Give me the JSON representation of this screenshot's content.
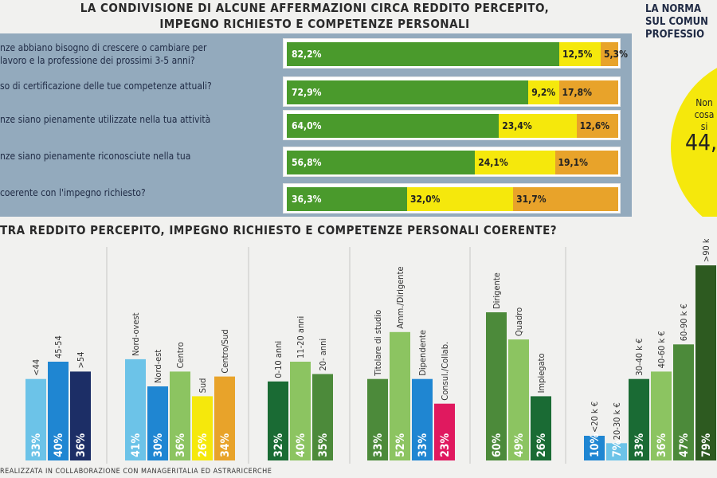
{
  "top": {
    "title_line1": "LA CONDIVISIONE DI ALCUNE AFFERMAZIONI CIRCA REDDITO PERCEPITO,",
    "title_line2": "IMPEGNO RICHIESTO E COMPETENZE PERSONALI",
    "statements": [
      {
        "text": "nze abbiano bisogno di crescere o cambiare per\n lavoro e la professione dei prossimi 3-5 anni?",
        "values": [
          82.2,
          12.5,
          5.3
        ],
        "labels": [
          "82,2%",
          "12,5%",
          "5,3%"
        ]
      },
      {
        "text": "so di certificazione delle tue competenze attuali?",
        "values": [
          72.9,
          9.2,
          17.8
        ],
        "labels": [
          "72,9%",
          "9,2%",
          "17,8%"
        ]
      },
      {
        "text": "nze siano pienamente utilizzate nella tua attività",
        "values": [
          64.0,
          23.4,
          12.6
        ],
        "labels": [
          "64,0%",
          "23,4%",
          "12,6%"
        ]
      },
      {
        "text": "nze siano pienamente riconosciute nella tua",
        "values": [
          56.8,
          24.1,
          19.1
        ],
        "labels": [
          "56,8%",
          "24,1%",
          "19,1%"
        ]
      },
      {
        "text": "coerente con l'impegno richiesto?",
        "values": [
          36.3,
          32.0,
          31.7
        ],
        "labels": [
          "36,3%",
          "32,0%",
          "31,7%"
        ]
      }
    ],
    "colors": [
      "#4a9a2c",
      "#f5e80c",
      "#e8a32a"
    ]
  },
  "right_panel": {
    "title": "LA NORMA\nSUL COMUN\nPROFESSIO",
    "circle_text": "Non \ncosa si",
    "circle_value": "44,"
  },
  "bottom": {
    "title": "TRA REDDITO PERCEPITO, IMPEGNO RICHIESTO E COMPETENZE PERSONALI COERENTE?"
  },
  "footer": "REALIZZATA IN COLLABORAZIONE CON MANAGERITALIA ED ASTRARICERCHE",
  "chart_data": {
    "type": "bar",
    "title": "TRA REDDITO PERCEPITO, IMPEGNO RICHIESTO E COMPETENZE PERSONALI COERENTE?",
    "groups": [
      {
        "bars": [
          {
            "label": "<44",
            "value": 33,
            "display": "33%",
            "color": "#6cc3e8"
          },
          {
            "label": "45-54",
            "value": 40,
            "display": "40%",
            "color": "#1f86d2"
          },
          {
            "label": ">54",
            "value": 36,
            "display": "36%",
            "color": "#1c2e66"
          }
        ]
      },
      {
        "bars": [
          {
            "label": "Nord-ovest",
            "value": 41,
            "display": "41%",
            "color": "#6cc3e8"
          },
          {
            "label": "Nord-est",
            "value": 30,
            "display": "30%",
            "color": "#1f86d2"
          },
          {
            "label": "Centro",
            "value": 36,
            "display": "36%",
            "color": "#8cc461"
          },
          {
            "label": "Sud",
            "value": 26,
            "display": "26%",
            "color": "#f5e80c"
          },
          {
            "label": "Centro/Sud",
            "value": 34,
            "display": "34%",
            "color": "#e8a32a"
          }
        ]
      },
      {
        "bars": [
          {
            "label": "0-10 anni",
            "value": 32,
            "display": "32%",
            "color": "#1a6b34"
          },
          {
            "label": "11-20 anni",
            "value": 40,
            "display": "40%",
            "color": "#8cc461"
          },
          {
            "label": "20- anni",
            "value": 35,
            "display": "35%",
            "color": "#4c8a3a"
          }
        ]
      },
      {
        "bars": [
          {
            "label": "Titolare di studio",
            "value": 33,
            "display": "33%",
            "color": "#4c8a3a"
          },
          {
            "label": "Amm./Dirigente",
            "value": 52,
            "display": "52%",
            "color": "#8cc461"
          },
          {
            "label": "Dipendente",
            "value": 33,
            "display": "33%",
            "color": "#1f86d2"
          },
          {
            "label": "Consul./Collab.",
            "value": 23,
            "display": "23%",
            "color": "#e0195f"
          }
        ]
      },
      {
        "bars": [
          {
            "label": "Dirigente",
            "value": 60,
            "display": "60%",
            "color": "#4c8a3a"
          },
          {
            "label": "Quadro",
            "value": 49,
            "display": "49%",
            "color": "#8cc461"
          },
          {
            "label": "Impiegato",
            "value": 26,
            "display": "26%",
            "color": "#1a6b34"
          }
        ]
      },
      {
        "bars": [
          {
            "label": "<20 k €",
            "value": 10,
            "display": "10%",
            "color": "#1f86d2"
          },
          {
            "label": "20-30 k €",
            "value": 7,
            "display": "7%",
            "color": "#6cc3e8"
          },
          {
            "label": "30-40 k €",
            "value": 33,
            "display": "33%",
            "color": "#1a6b34"
          },
          {
            "label": "40-60 k €",
            "value": 36,
            "display": "36%",
            "color": "#8cc461"
          },
          {
            "label": "60-90 k €",
            "value": 47,
            "display": "47%",
            "color": "#4c8a3a"
          },
          {
            "label": ">90 k €",
            "value": 79,
            "display": "79%",
            "color": "#2d5a20"
          }
        ]
      }
    ]
  }
}
